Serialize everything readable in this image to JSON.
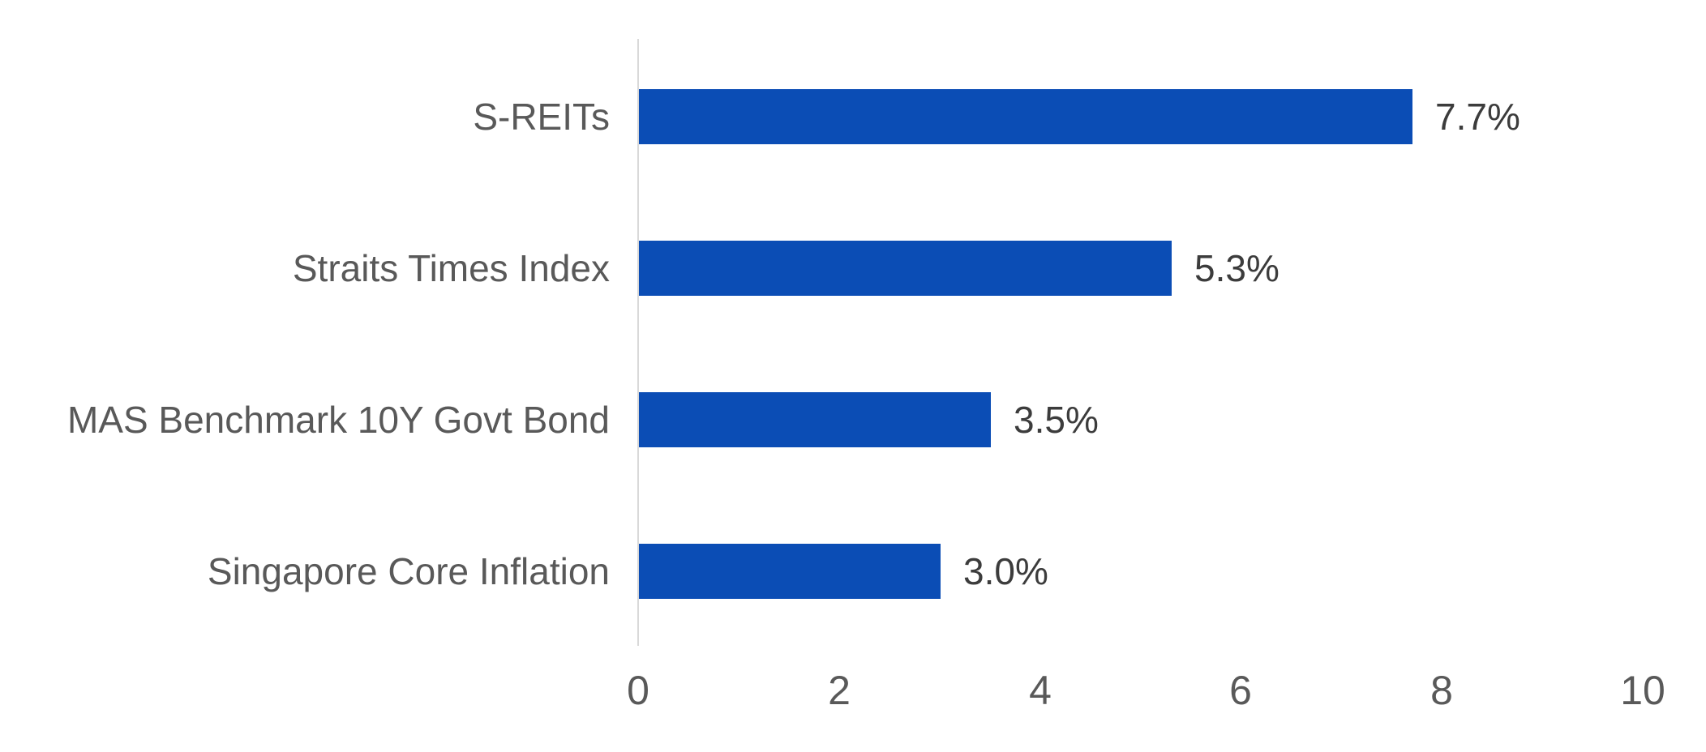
{
  "chart_data": {
    "type": "bar",
    "orientation": "horizontal",
    "title": "",
    "xlabel": "",
    "ylabel": "",
    "categories": [
      "S-REITs",
      "Straits Times Index",
      "MAS Benchmark 10Y Govt Bond",
      "Singapore Core Inflation"
    ],
    "values": [
      7.7,
      5.3,
      3.5,
      3.0
    ],
    "value_labels": [
      "7.7%",
      "5.3%",
      "3.5%",
      "3.0%"
    ],
    "xlim": [
      0,
      10
    ],
    "xticks": [
      "0",
      "2",
      "4",
      "6",
      "8",
      "10"
    ],
    "xtick_values": [
      0,
      2,
      4,
      6,
      8,
      10
    ],
    "grid": false,
    "legend": "none",
    "colors": {
      "bar": "#0B4DB5",
      "category_label": "#595959",
      "value_label": "#3C3C3C",
      "tick_label": "#595959",
      "axis_line": "#D9D9D9",
      "background": "#FFFFFF"
    }
  }
}
